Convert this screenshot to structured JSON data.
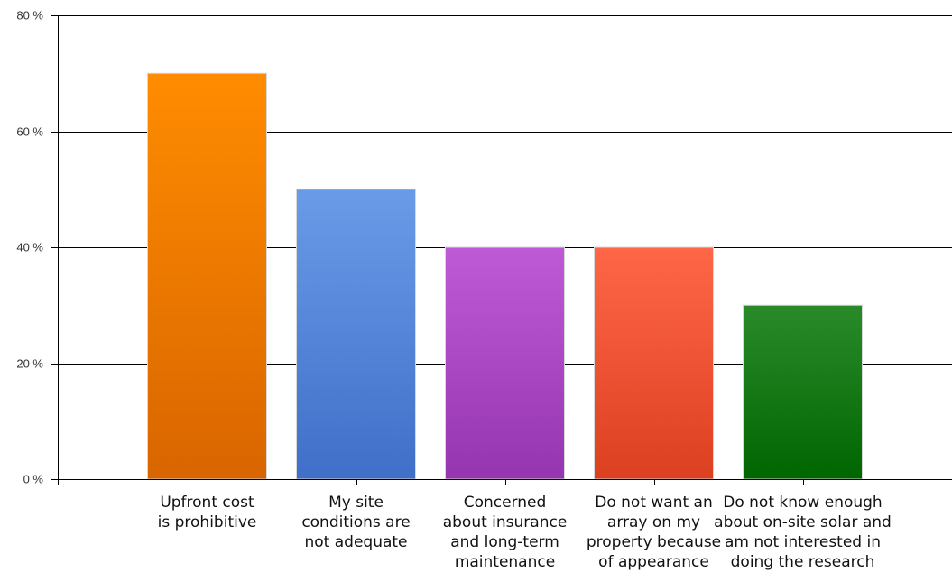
{
  "chart_data": {
    "type": "bar",
    "title": "",
    "xlabel": "",
    "ylabel": "",
    "ylim": [
      0,
      80
    ],
    "y_ticks": [
      0,
      20,
      40,
      60,
      80
    ],
    "y_tick_labels": [
      "0 %",
      "20 %",
      "40 %",
      "60 %",
      "80 %"
    ],
    "grid": true,
    "legend": "none",
    "categories": [
      [
        "Upfront cost",
        "is prohibitive"
      ],
      [
        "My site",
        "conditions are",
        "not adequate"
      ],
      [
        "Concerned",
        "about insurance",
        "and long-term",
        "maintenance"
      ],
      [
        "Do not want an",
        "array on my",
        "property because",
        "of appearance"
      ],
      [
        "Do not know enough",
        "about on-site solar and",
        "am not interested in",
        "doing the research"
      ]
    ],
    "values": [
      70,
      50,
      40,
      40,
      30
    ],
    "bar_colors": [
      [
        "#ff8c00",
        "#d96500"
      ],
      [
        "#6a9be8",
        "#3f6fc8"
      ],
      [
        "#bf5ad6",
        "#9535b0"
      ],
      [
        "#ff6648",
        "#db4020"
      ],
      [
        "#2a8a2a",
        "#006600"
      ]
    ]
  }
}
